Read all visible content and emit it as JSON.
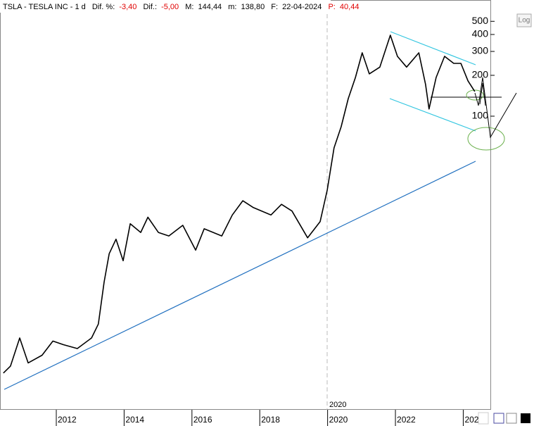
{
  "chart_data": {
    "type": "line",
    "log_scale": true,
    "color": "#000000",
    "header": {
      "symbol": "TSLA - TESLA INC - 1 d",
      "dif_pct_label": "Dif. %:",
      "dif_pct": "-3,40",
      "dif_label": "Dif.:",
      "dif": "-5,00",
      "max_label": "M:",
      "max": "144,44",
      "min_label": "m:",
      "min": "138,80",
      "date_label": "F:",
      "date": "22-04-2024",
      "p_label": "P:",
      "p": "40,44"
    },
    "log_button": "Log",
    "annotation": "2020",
    "x": [
      2010.44,
      2010.65,
      2010.92,
      2011.17,
      2011.58,
      2011.9,
      2012.21,
      2012.62,
      2013.04,
      2013.24,
      2013.41,
      2013.56,
      2013.76,
      2013.97,
      2014.18,
      2014.49,
      2014.7,
      2015.01,
      2015.32,
      2015.73,
      2016.11,
      2016.36,
      2016.88,
      2017.19,
      2017.5,
      2017.81,
      2018.33,
      2018.64,
      2018.95,
      2019.41,
      2019.78,
      2019.99,
      2020.19,
      2020.4,
      2020.61,
      2020.82,
      2021.02,
      2021.23,
      2021.54,
      2021.85,
      2022.06,
      2022.33,
      2022.69,
      2022.89,
      2022.99,
      2023.2,
      2023.45,
      2023.72,
      2023.93,
      2024.14,
      2024.34
    ],
    "values": [
      1.28,
      1.44,
      2.32,
      1.52,
      1.73,
      2.2,
      2.07,
      1.94,
      2.32,
      2.94,
      6.0,
      9.7,
      12.4,
      8.6,
      16.1,
      13.9,
      18.0,
      13.9,
      13.1,
      15.7,
      10.3,
      14.8,
      13.1,
      18.7,
      23.8,
      21.2,
      18.7,
      22.4,
      20.0,
      12.7,
      16.7,
      28.5,
      58.4,
      83.6,
      134.8,
      193,
      293,
      205,
      230,
      395,
      276,
      230,
      293,
      171,
      113,
      193,
      276,
      245,
      245,
      182,
      152
    ],
    "xlim": [
      2010.34,
      2024.8
    ],
    "ylim": [
      0.553,
      718
    ],
    "xticks": [
      2012,
      2014,
      2016,
      2018,
      2020,
      2022,
      {
        "value": 2024,
        "label": "202"
      }
    ],
    "yticks": [
      100,
      200,
      300,
      400,
      500
    ]
  }
}
